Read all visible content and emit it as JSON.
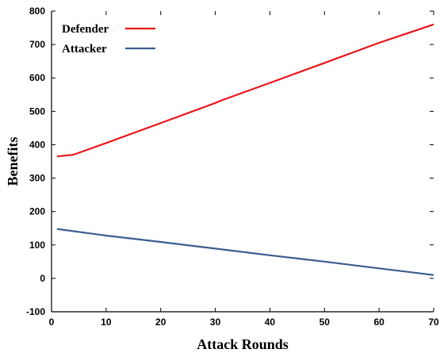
{
  "chart_data": {
    "type": "line",
    "title": "",
    "xlabel": "Attack Rounds",
    "ylabel": "Benefits",
    "xlim": [
      0,
      70
    ],
    "ylim": [
      -100,
      800
    ],
    "xticks": [
      0,
      10,
      20,
      30,
      40,
      50,
      60,
      70
    ],
    "yticks": [
      -100,
      0,
      100,
      200,
      300,
      400,
      500,
      600,
      700,
      800
    ],
    "grid": false,
    "legend_position": "top-left",
    "series": [
      {
        "name": "Defender",
        "color": "#e8161b",
        "x": [
          1,
          4,
          10,
          20,
          30,
          31,
          40,
          50,
          60,
          70
        ],
        "y": [
          365,
          370,
          405,
          465,
          525,
          532,
          585,
          645,
          705,
          760
        ]
      },
      {
        "name": "Attacker",
        "color": "#3b5d91",
        "x": [
          1,
          10,
          20,
          30,
          40,
          50,
          60,
          70
        ],
        "y": [
          148,
          128,
          109,
          89,
          69,
          50,
          30,
          10
        ]
      }
    ]
  }
}
